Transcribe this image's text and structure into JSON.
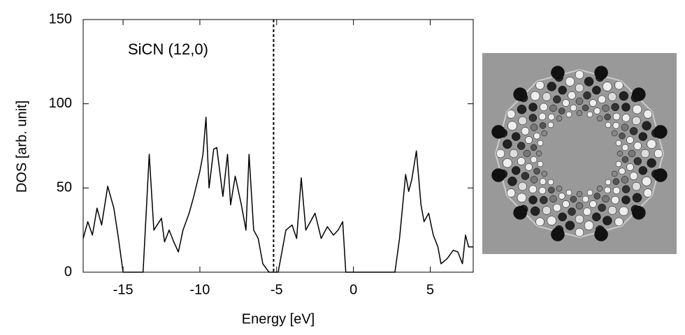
{
  "chart_data": {
    "type": "line",
    "annotation": "SiCN (12,0)",
    "xlabel": "Energy  [eV]",
    "ylabel": "DOS  [arb. unit]",
    "xlim": [
      -17.6,
      7.8
    ],
    "ylim": [
      0,
      150
    ],
    "xticks": [
      -15,
      -10,
      -5,
      0,
      5
    ],
    "yticks": [
      0,
      50,
      100,
      150
    ],
    "vline": -5.2,
    "series": [
      {
        "color": "#000000",
        "x": [
          -17.6,
          -17.3,
          -17.0,
          -16.7,
          -16.4,
          -16.0,
          -15.6,
          -15.3,
          -15.0,
          -13.7,
          -13.3,
          -13.0,
          -12.5,
          -12.3,
          -12.0,
          -11.7,
          -11.4,
          -11.1,
          -10.7,
          -10.4,
          -10.0,
          -9.8,
          -9.6,
          -9.4,
          -9.1,
          -8.9,
          -8.5,
          -8.2,
          -8.0,
          -7.7,
          -7.3,
          -7.0,
          -6.8,
          -6.5,
          -6.2,
          -5.9,
          -5.5,
          -4.9,
          -4.4,
          -4.0,
          -3.7,
          -3.4,
          -3.1,
          -2.8,
          -2.5,
          -2.1,
          -1.7,
          -1.3,
          -1.0,
          -0.7,
          -0.5,
          2.7,
          3.0,
          3.4,
          3.6,
          3.8,
          4.1,
          4.4,
          4.6,
          4.9,
          5.2,
          5.5,
          5.7,
          6.1,
          6.5,
          6.8,
          7.1,
          7.3,
          7.5,
          7.8
        ],
        "values": [
          20,
          30,
          22,
          38,
          28,
          51,
          38,
          20,
          0,
          0,
          70,
          25,
          32,
          18,
          25,
          18,
          12,
          25,
          35,
          45,
          60,
          70,
          92,
          50,
          73,
          74,
          45,
          70,
          40,
          57,
          40,
          25,
          70,
          25,
          20,
          5,
          0,
          0,
          25,
          28,
          20,
          56,
          25,
          30,
          35,
          20,
          27,
          22,
          25,
          30,
          0,
          0,
          20,
          58,
          48,
          55,
          72,
          40,
          30,
          35,
          22,
          15,
          5,
          8,
          13,
          12,
          5,
          22,
          15,
          15
        ]
      }
    ]
  }
}
